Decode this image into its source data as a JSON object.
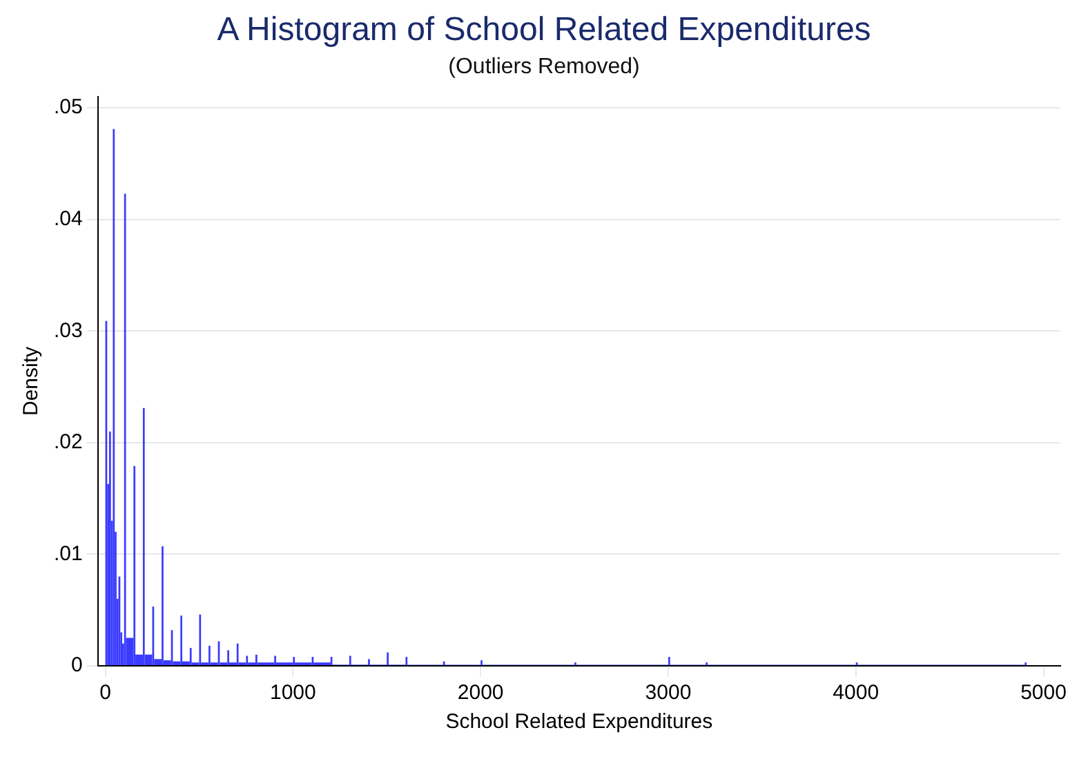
{
  "chart_data": {
    "type": "histogram",
    "title": "A Histogram of School Related Expenditures",
    "subtitle": "(Outliers Removed)",
    "xlabel": "School Related Expenditures",
    "ylabel": "Density",
    "bins": [
      0,
      10,
      20,
      30,
      40,
      50,
      60,
      70,
      80,
      90,
      100,
      110,
      150,
      160,
      200,
      210,
      250,
      260,
      300,
      310,
      350,
      360,
      400,
      410,
      450,
      460,
      500,
      510,
      550,
      560,
      600,
      610,
      650,
      660,
      700,
      710,
      750,
      760,
      800,
      810,
      900,
      910,
      1000,
      1010,
      1100,
      1110,
      1200,
      1210,
      1300,
      1310,
      1400,
      1410,
      1500,
      1510,
      1600,
      1610,
      1800,
      1810,
      2000,
      2010,
      2500,
      2510,
      3000,
      3010,
      3200,
      3210,
      4000,
      4010,
      4900,
      4910
    ],
    "values": [
      0.0309,
      0.0163,
      0.021,
      0.013,
      0.0481,
      0.012,
      0.006,
      0.008,
      0.003,
      0.002,
      0.0423,
      0.0025,
      0.0179,
      0.001,
      0.0231,
      0.001,
      0.0053,
      0.0006,
      0.0107,
      0.0005,
      0.0032,
      0.0004,
      0.0045,
      0.0004,
      0.0016,
      0.0003,
      0.0046,
      0.0003,
      0.0018,
      0.0003,
      0.0022,
      0.0003,
      0.0014,
      0.0003,
      0.002,
      0.0003,
      0.0009,
      0.0003,
      0.001,
      0.0003,
      0.0009,
      0.0003,
      0.0008,
      0.0003,
      0.0008,
      0.0003,
      0.0008,
      0.0001,
      0.0009,
      0.0001,
      0.0006,
      0.0001,
      0.0012,
      0.0001,
      0.0008,
      0.0001,
      0.0004,
      0.0001,
      0.0005,
      0.0001,
      0.0003,
      0.0001,
      0.0008,
      0.0001,
      0.0003,
      0.0001,
      0.0003,
      0.0001,
      0.0003
    ],
    "color": "#3a3aff",
    "xlim": [
      -40,
      5090
    ],
    "xticks": [
      0,
      1000,
      2000,
      3000,
      4000,
      5000
    ],
    "ylim": [
      0,
      0.051
    ],
    "yticks": [
      0,
      {
        "value": 0.01,
        "label": ".01"
      },
      {
        "value": 0.02,
        "label": ".02"
      },
      {
        "value": 0.03,
        "label": ".03"
      },
      {
        "value": 0.04,
        "label": ".04"
      },
      {
        "value": 0.05,
        "label": ".05"
      }
    ],
    "grid": "y"
  }
}
